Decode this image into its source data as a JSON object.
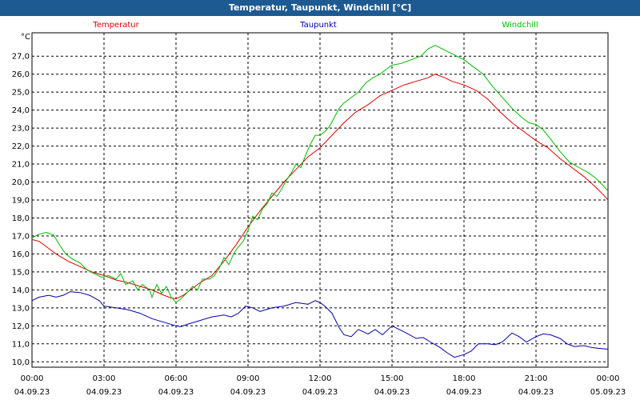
{
  "window": {
    "title": "Temperatur, Taupunkt, Windchill [°C]"
  },
  "colors": {
    "titlebar": "#1d5a91",
    "temperatur": "#dd0000",
    "taupunkt": "#0000aa",
    "windchill": "#00bb00"
  },
  "chart_data": {
    "type": "line",
    "title": "Temperatur, Taupunkt, Windchill [°C]",
    "ylabel": "°C",
    "ylim": [
      9.7,
      28.3
    ],
    "xlim_hours": [
      0,
      24
    ],
    "grid": true,
    "legend_placement": "top",
    "y_ticks": [
      "10,0",
      "11,0",
      "12,0",
      "13,0",
      "14,0",
      "15,0",
      "16,0",
      "17,0",
      "18,0",
      "19,0",
      "20,0",
      "21,0",
      "22,0",
      "23,0",
      "24,0",
      "25,0",
      "26,0",
      "27,0"
    ],
    "x_ticks": [
      {
        "time": "00:00",
        "date": "04.09.23"
      },
      {
        "time": "03:00",
        "date": "04.09.23"
      },
      {
        "time": "06:00",
        "date": "04.09.23"
      },
      {
        "time": "09:00",
        "date": "04.09.23"
      },
      {
        "time": "12:00",
        "date": "04.09.23"
      },
      {
        "time": "15:00",
        "date": "04.09.23"
      },
      {
        "time": "18:00",
        "date": "04.09.23"
      },
      {
        "time": "21:00",
        "date": "04.09.23"
      },
      {
        "time": "00:00",
        "date": "05.09.23"
      }
    ],
    "series": [
      {
        "name": "Temperatur",
        "color": "#dd0000",
        "points": [
          [
            0,
            16.8
          ],
          [
            0.3,
            16.7
          ],
          [
            0.6,
            16.4
          ],
          [
            1,
            16.0
          ],
          [
            1.5,
            15.6
          ],
          [
            2,
            15.3
          ],
          [
            2.5,
            15.0
          ],
          [
            3,
            14.8
          ],
          [
            3.5,
            14.55
          ],
          [
            4,
            14.4
          ],
          [
            4.5,
            14.2
          ],
          [
            5,
            14.0
          ],
          [
            5.5,
            13.7
          ],
          [
            5.8,
            13.55
          ],
          [
            6,
            13.5
          ],
          [
            6.3,
            13.7
          ],
          [
            6.6,
            14.0
          ],
          [
            7,
            14.4
          ],
          [
            7.5,
            14.8
          ],
          [
            8,
            15.6
          ],
          [
            8.5,
            16.5
          ],
          [
            9,
            17.5
          ],
          [
            9.5,
            18.4
          ],
          [
            10,
            19.2
          ],
          [
            10.5,
            20.0
          ],
          [
            11,
            20.7
          ],
          [
            11.5,
            21.4
          ],
          [
            12,
            21.9
          ],
          [
            12.5,
            22.6
          ],
          [
            13,
            23.3
          ],
          [
            13.5,
            23.9
          ],
          [
            14,
            24.3
          ],
          [
            14.5,
            24.8
          ],
          [
            15,
            25.1
          ],
          [
            15.5,
            25.4
          ],
          [
            16,
            25.6
          ],
          [
            16.5,
            25.8
          ],
          [
            16.8,
            26.0
          ],
          [
            17.2,
            25.8
          ],
          [
            17.5,
            25.6
          ],
          [
            18,
            25.4
          ],
          [
            18.5,
            25.1
          ],
          [
            19,
            24.6
          ],
          [
            19.5,
            23.9
          ],
          [
            20,
            23.3
          ],
          [
            20.5,
            22.8
          ],
          [
            21,
            22.3
          ],
          [
            21.5,
            21.9
          ],
          [
            22,
            21.3
          ],
          [
            22.5,
            20.8
          ],
          [
            23,
            20.3
          ],
          [
            23.5,
            19.7
          ],
          [
            23.8,
            19.3
          ],
          [
            24,
            19.0
          ]
        ]
      },
      {
        "name": "Taupunkt",
        "color": "#0000aa",
        "points": [
          [
            0,
            13.4
          ],
          [
            0.3,
            13.6
          ],
          [
            0.7,
            13.7
          ],
          [
            1,
            13.6
          ],
          [
            1.3,
            13.7
          ],
          [
            1.6,
            13.9
          ],
          [
            2,
            13.85
          ],
          [
            2.4,
            13.7
          ],
          [
            2.8,
            13.4
          ],
          [
            3,
            13.1
          ],
          [
            3.5,
            13.0
          ],
          [
            4,
            12.9
          ],
          [
            4.5,
            12.7
          ],
          [
            5,
            12.4
          ],
          [
            5.5,
            12.2
          ],
          [
            6,
            12.0
          ],
          [
            6.2,
            11.95
          ],
          [
            6.5,
            12.1
          ],
          [
            7,
            12.3
          ],
          [
            7.5,
            12.5
          ],
          [
            8,
            12.6
          ],
          [
            8.3,
            12.5
          ],
          [
            8.6,
            12.7
          ],
          [
            8.9,
            13.1
          ],
          [
            9.2,
            13.0
          ],
          [
            9.5,
            12.8
          ],
          [
            10,
            13.0
          ],
          [
            10.5,
            13.1
          ],
          [
            11,
            13.3
          ],
          [
            11.5,
            13.2
          ],
          [
            11.8,
            13.4
          ],
          [
            12,
            13.3
          ],
          [
            12.2,
            13.1
          ],
          [
            12.5,
            12.7
          ],
          [
            12.8,
            11.9
          ],
          [
            13,
            11.5
          ],
          [
            13.3,
            11.4
          ],
          [
            13.6,
            11.8
          ],
          [
            14,
            11.55
          ],
          [
            14.3,
            11.8
          ],
          [
            14.6,
            11.5
          ],
          [
            15,
            12.0
          ],
          [
            15.3,
            11.8
          ],
          [
            15.6,
            11.6
          ],
          [
            16,
            11.3
          ],
          [
            16.3,
            11.35
          ],
          [
            16.6,
            11.1
          ],
          [
            17,
            10.8
          ],
          [
            17.3,
            10.5
          ],
          [
            17.6,
            10.25
          ],
          [
            18,
            10.4
          ],
          [
            18.3,
            10.6
          ],
          [
            18.6,
            11.0
          ],
          [
            19,
            11.0
          ],
          [
            19.3,
            10.95
          ],
          [
            19.6,
            11.1
          ],
          [
            20,
            11.6
          ],
          [
            20.3,
            11.4
          ],
          [
            20.6,
            11.1
          ],
          [
            21,
            11.4
          ],
          [
            21.3,
            11.55
          ],
          [
            21.6,
            11.5
          ],
          [
            22,
            11.3
          ],
          [
            22.3,
            11.0
          ],
          [
            22.6,
            10.85
          ],
          [
            23,
            10.9
          ],
          [
            23.3,
            10.8
          ],
          [
            23.6,
            10.75
          ],
          [
            24,
            10.7
          ]
        ]
      },
      {
        "name": "Windchill",
        "color": "#00bb00",
        "points": [
          [
            0,
            16.9
          ],
          [
            0.3,
            17.1
          ],
          [
            0.6,
            17.2
          ],
          [
            0.9,
            17.05
          ],
          [
            1.1,
            16.6
          ],
          [
            1.4,
            16.0
          ],
          [
            1.7,
            15.7
          ],
          [
            2,
            15.5
          ],
          [
            2.3,
            15.1
          ],
          [
            2.6,
            14.9
          ],
          [
            2.9,
            14.7
          ],
          [
            3.2,
            14.8
          ],
          [
            3.5,
            14.6
          ],
          [
            3.7,
            14.9
          ],
          [
            3.9,
            14.3
          ],
          [
            4.2,
            14.5
          ],
          [
            4.4,
            14.0
          ],
          [
            4.6,
            14.3
          ],
          [
            4.9,
            14.0
          ],
          [
            5,
            13.6
          ],
          [
            5.2,
            14.3
          ],
          [
            5.4,
            13.8
          ],
          [
            5.6,
            14.2
          ],
          [
            5.8,
            13.6
          ],
          [
            6,
            13.3
          ],
          [
            6.2,
            13.5
          ],
          [
            6.5,
            13.9
          ],
          [
            6.7,
            14.2
          ],
          [
            6.9,
            14.0
          ],
          [
            7.1,
            14.6
          ],
          [
            7.4,
            14.6
          ],
          [
            7.6,
            14.8
          ],
          [
            7.8,
            15.2
          ],
          [
            8,
            15.8
          ],
          [
            8.2,
            15.4
          ],
          [
            8.4,
            16.0
          ],
          [
            8.6,
            16.4
          ],
          [
            8.8,
            16.7
          ],
          [
            9,
            17.3
          ],
          [
            9.2,
            18.1
          ],
          [
            9.4,
            17.9
          ],
          [
            9.6,
            18.5
          ],
          [
            9.8,
            18.8
          ],
          [
            10,
            19.4
          ],
          [
            10.2,
            19.2
          ],
          [
            10.4,
            19.6
          ],
          [
            10.6,
            20.1
          ],
          [
            10.8,
            20.5
          ],
          [
            11,
            21.0
          ],
          [
            11.2,
            20.8
          ],
          [
            11.4,
            21.5
          ],
          [
            11.6,
            22.1
          ],
          [
            11.8,
            22.6
          ],
          [
            12,
            22.6
          ],
          [
            12.2,
            22.8
          ],
          [
            12.4,
            23.1
          ],
          [
            12.6,
            23.6
          ],
          [
            12.8,
            24.1
          ],
          [
            13,
            24.4
          ],
          [
            13.3,
            24.7
          ],
          [
            13.6,
            25.0
          ],
          [
            13.9,
            25.5
          ],
          [
            14.2,
            25.8
          ],
          [
            14.5,
            26.0
          ],
          [
            14.8,
            26.3
          ],
          [
            15,
            26.5
          ],
          [
            15.4,
            26.6
          ],
          [
            15.8,
            26.8
          ],
          [
            16.2,
            27.0
          ],
          [
            16.5,
            27.4
          ],
          [
            16.8,
            27.6
          ],
          [
            17.1,
            27.4
          ],
          [
            17.4,
            27.2
          ],
          [
            17.7,
            27.0
          ],
          [
            18,
            26.8
          ],
          [
            18.4,
            26.4
          ],
          [
            18.8,
            26.0
          ],
          [
            19.2,
            25.3
          ],
          [
            19.6,
            24.7
          ],
          [
            20,
            24.1
          ],
          [
            20.4,
            23.6
          ],
          [
            20.7,
            23.3
          ],
          [
            21,
            23.2
          ],
          [
            21.3,
            22.9
          ],
          [
            21.6,
            22.4
          ],
          [
            22,
            21.7
          ],
          [
            22.4,
            21.1
          ],
          [
            22.8,
            20.8
          ],
          [
            23.2,
            20.5
          ],
          [
            23.5,
            20.2
          ],
          [
            23.8,
            19.8
          ],
          [
            24,
            19.5
          ]
        ]
      }
    ]
  }
}
